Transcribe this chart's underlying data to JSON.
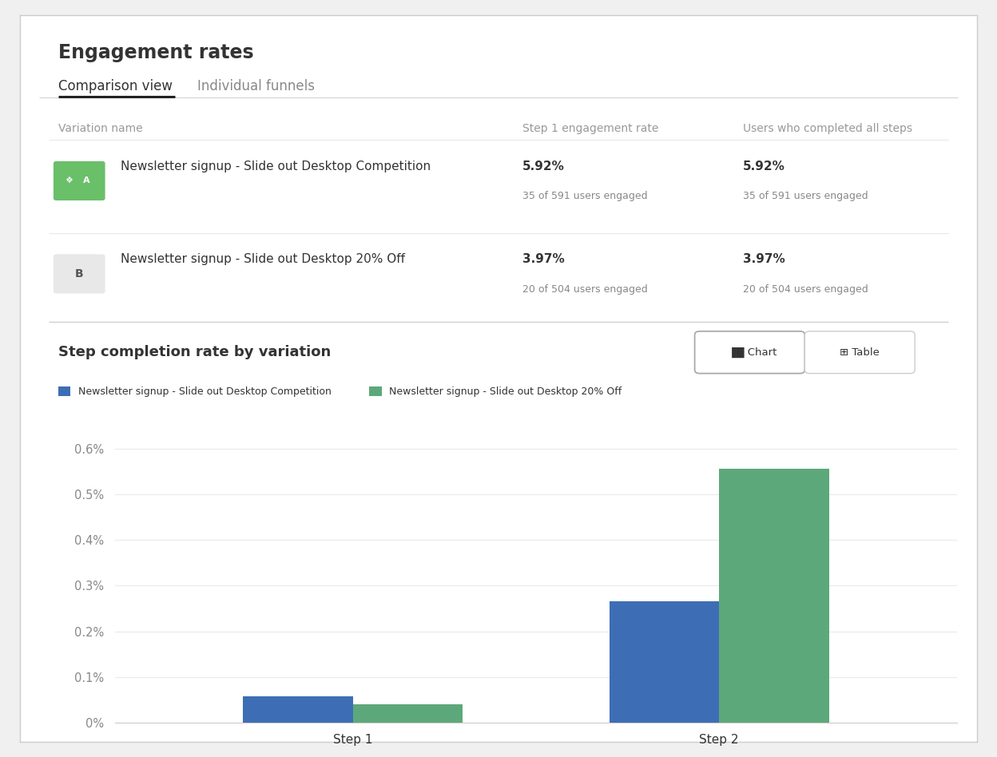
{
  "title": "Engagement rates",
  "tab_active": "Comparison view",
  "tab_inactive": "Individual funnels",
  "table_headers": [
    "Variation name",
    "Step 1 engagement rate",
    "Users who completed all steps"
  ],
  "variations": [
    {
      "label": "A",
      "name": "Newsletter signup - Slide out Desktop Competition",
      "step1_rate": "5.92%",
      "step1_sub": "35 of 591 users engaged",
      "completed_rate": "5.92%",
      "completed_sub": "35 of 591 users engaged",
      "is_winner": true,
      "badge_color": "#6abf69",
      "badge_text_color": "#ffffff"
    },
    {
      "label": "B",
      "name": "Newsletter signup - Slide out Desktop 20% Off",
      "step1_rate": "3.97%",
      "step1_sub": "20 of 504 users engaged",
      "completed_rate": "3.97%",
      "completed_sub": "20 of 504 users engaged",
      "is_winner": false,
      "badge_color": "#e8e8e8",
      "badge_text_color": "#555555"
    }
  ],
  "chart_title": "Step completion rate by variation",
  "legend_labels": [
    "Newsletter signup - Slide out Desktop Competition",
    "Newsletter signup - Slide out Desktop 20% Off"
  ],
  "bar_colors": [
    "#3d6eb5",
    "#5da87a"
  ],
  "steps": [
    "Step 1",
    "Step 2"
  ],
  "blue_vals": [
    0.00059,
    0.00265
  ],
  "green_vals": [
    0.0004,
    0.00556
  ],
  "ytick_vals": [
    0.0,
    0.001,
    0.002,
    0.003,
    0.004,
    0.005,
    0.006
  ],
  "ytick_labels": [
    "0%",
    "0.1%",
    "0.2%",
    "0.3%",
    "0.4%",
    "0.5%",
    "0.6%"
  ],
  "background_color": "#ffffff",
  "border_color": "#e0e0e0",
  "grid_color": "#eaeaea",
  "text_color": "#333333",
  "subtext_color": "#888888",
  "header_color": "#999999"
}
